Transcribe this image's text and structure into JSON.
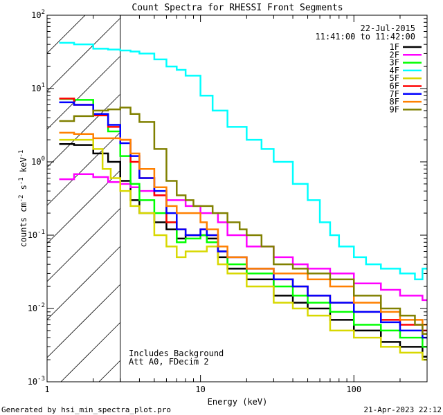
{
  "chart_data": {
    "type": "line",
    "title": "Count Spectra for RHESSI Front Segments",
    "xlabel": "Energy (keV)",
    "ylabel_parts": [
      "counts cm",
      "-2",
      " s",
      "-1",
      " keV",
      "-1"
    ],
    "xscale": "log",
    "yscale": "log",
    "xlim": [
      1,
      300
    ],
    "ylim": [
      0.001,
      100
    ],
    "x_major_ticks": [
      {
        "value": 1,
        "label": "1"
      },
      {
        "value": 10,
        "label": "10"
      },
      {
        "value": 100,
        "label": "100"
      }
    ],
    "y_major_ticks": [
      {
        "value": 0.001,
        "base": "10",
        "exp": "-3"
      },
      {
        "value": 0.01,
        "base": "10",
        "exp": "-2"
      },
      {
        "value": 0.1,
        "base": "10",
        "exp": "-1"
      },
      {
        "value": 1,
        "base": "10",
        "exp": "0"
      },
      {
        "value": 10,
        "base": "10",
        "exp": "1"
      },
      {
        "value": 100,
        "base": "10",
        "exp": "2"
      }
    ],
    "date": "22-Jul-2015",
    "time_range": "11:41:00 to 11:42:00",
    "shaded_region": {
      "xmin": 1,
      "xmax": 3
    },
    "vertical_line_x": 3,
    "annotations": [
      "Includes Background",
      "Att A0, FDecim 2"
    ],
    "series": [
      {
        "name": "1F",
        "color": "#000000",
        "points": [
          [
            1.2,
            1.75
          ],
          [
            1.5,
            1.7
          ],
          [
            2,
            1.3
          ],
          [
            2.5,
            1.0
          ],
          [
            3,
            0.55
          ],
          [
            3.5,
            0.3
          ],
          [
            4,
            0.2
          ],
          [
            5,
            0.15
          ],
          [
            6,
            0.12
          ],
          [
            7,
            0.09
          ],
          [
            8,
            0.1
          ],
          [
            9,
            0.1
          ],
          [
            10,
            0.1
          ],
          [
            11,
            0.09
          ],
          [
            13,
            0.05
          ],
          [
            15,
            0.035
          ],
          [
            20,
            0.025
          ],
          [
            30,
            0.015
          ],
          [
            40,
            0.012
          ],
          [
            50,
            0.01
          ],
          [
            70,
            0.007
          ],
          [
            100,
            0.005
          ],
          [
            150,
            0.0035
          ],
          [
            200,
            0.003
          ],
          [
            280,
            0.0022
          ]
        ]
      },
      {
        "name": "2F",
        "color": "#ff00ff",
        "points": [
          [
            1.2,
            0.58
          ],
          [
            1.5,
            0.68
          ],
          [
            2,
            0.62
          ],
          [
            2.5,
            0.53
          ],
          [
            3,
            0.5
          ],
          [
            3.5,
            0.45
          ],
          [
            4,
            0.4
          ],
          [
            5,
            0.35
          ],
          [
            6,
            0.3
          ],
          [
            8,
            0.25
          ],
          [
            10,
            0.2
          ],
          [
            13,
            0.15
          ],
          [
            15,
            0.1
          ],
          [
            20,
            0.07
          ],
          [
            30,
            0.05
          ],
          [
            40,
            0.04
          ],
          [
            50,
            0.035
          ],
          [
            70,
            0.03
          ],
          [
            100,
            0.022
          ],
          [
            150,
            0.018
          ],
          [
            200,
            0.015
          ],
          [
            280,
            0.013
          ]
        ]
      },
      {
        "name": "3F",
        "color": "#00ff00",
        "points": [
          [
            1.2,
            7.2
          ],
          [
            1.5,
            7.0
          ],
          [
            2,
            4.5
          ],
          [
            2.5,
            2.6
          ],
          [
            3,
            1.2
          ],
          [
            3.5,
            0.5
          ],
          [
            4,
            0.3
          ],
          [
            5,
            0.2
          ],
          [
            6,
            0.15
          ],
          [
            7,
            0.08
          ],
          [
            8,
            0.09
          ],
          [
            10,
            0.1
          ],
          [
            11,
            0.08
          ],
          [
            13,
            0.06
          ],
          [
            15,
            0.04
          ],
          [
            20,
            0.03
          ],
          [
            30,
            0.02
          ],
          [
            40,
            0.015
          ],
          [
            50,
            0.012
          ],
          [
            70,
            0.009
          ],
          [
            100,
            0.006
          ],
          [
            150,
            0.005
          ],
          [
            200,
            0.004
          ],
          [
            280,
            0.003
          ]
        ]
      },
      {
        "name": "4F",
        "color": "#00ffff",
        "points": [
          [
            1.2,
            42
          ],
          [
            1.5,
            40
          ],
          [
            2,
            35
          ],
          [
            2.5,
            34
          ],
          [
            3,
            33
          ],
          [
            3.5,
            32
          ],
          [
            4,
            30
          ],
          [
            5,
            25
          ],
          [
            6,
            20
          ],
          [
            7,
            18
          ],
          [
            8,
            15
          ],
          [
            10,
            8
          ],
          [
            12,
            5
          ],
          [
            15,
            3
          ],
          [
            20,
            2
          ],
          [
            25,
            1.5
          ],
          [
            30,
            1.0
          ],
          [
            40,
            0.5
          ],
          [
            50,
            0.3
          ],
          [
            60,
            0.15
          ],
          [
            70,
            0.1
          ],
          [
            80,
            0.07
          ],
          [
            100,
            0.05
          ],
          [
            120,
            0.04
          ],
          [
            150,
            0.035
          ],
          [
            200,
            0.03
          ],
          [
            250,
            0.025
          ],
          [
            280,
            0.035
          ]
        ]
      },
      {
        "name": "5F",
        "color": "#d8d800",
        "points": [
          [
            1.2,
            2.0
          ],
          [
            1.5,
            2.0
          ],
          [
            2,
            1.5
          ],
          [
            2.3,
            0.8
          ],
          [
            2.6,
            0.6
          ],
          [
            3,
            0.4
          ],
          [
            3.5,
            0.25
          ],
          [
            4,
            0.2
          ],
          [
            5,
            0.1
          ],
          [
            6,
            0.07
          ],
          [
            7,
            0.05
          ],
          [
            8,
            0.06
          ],
          [
            10,
            0.06
          ],
          [
            11,
            0.07
          ],
          [
            13,
            0.04
          ],
          [
            15,
            0.03
          ],
          [
            20,
            0.02
          ],
          [
            30,
            0.012
          ],
          [
            40,
            0.01
          ],
          [
            50,
            0.008
          ],
          [
            70,
            0.005
          ],
          [
            100,
            0.004
          ],
          [
            150,
            0.003
          ],
          [
            200,
            0.0025
          ],
          [
            280,
            0.002
          ]
        ]
      },
      {
        "name": "6F",
        "color": "#ff0000",
        "points": [
          [
            1.2,
            7.3
          ],
          [
            1.5,
            6.0
          ],
          [
            2,
            4.3
          ],
          [
            2.5,
            3.0
          ],
          [
            3,
            2.0
          ],
          [
            3.5,
            1.0
          ],
          [
            4,
            0.6
          ],
          [
            5,
            0.35
          ],
          [
            6,
            0.15
          ],
          [
            7,
            0.12
          ],
          [
            8,
            0.1
          ],
          [
            10,
            0.12
          ],
          [
            11,
            0.1
          ],
          [
            13,
            0.06
          ],
          [
            15,
            0.05
          ],
          [
            20,
            0.035
          ],
          [
            30,
            0.025
          ],
          [
            40,
            0.02
          ],
          [
            50,
            0.015
          ],
          [
            70,
            0.012
          ],
          [
            100,
            0.009
          ],
          [
            150,
            0.007
          ],
          [
            200,
            0.006
          ],
          [
            280,
            0.005
          ]
        ]
      },
      {
        "name": "7F",
        "color": "#0000ff",
        "points": [
          [
            1.2,
            6.5
          ],
          [
            1.5,
            6.0
          ],
          [
            2,
            4.5
          ],
          [
            2.5,
            3.2
          ],
          [
            3,
            1.8
          ],
          [
            3.5,
            1.2
          ],
          [
            4,
            0.6
          ],
          [
            5,
            0.4
          ],
          [
            6,
            0.2
          ],
          [
            7,
            0.12
          ],
          [
            8,
            0.1
          ],
          [
            10,
            0.12
          ],
          [
            11,
            0.1
          ],
          [
            13,
            0.06
          ],
          [
            15,
            0.05
          ],
          [
            20,
            0.035
          ],
          [
            30,
            0.025
          ],
          [
            40,
            0.02
          ],
          [
            50,
            0.015
          ],
          [
            70,
            0.012
          ],
          [
            100,
            0.009
          ],
          [
            150,
            0.0065
          ],
          [
            200,
            0.005
          ],
          [
            280,
            0.004
          ]
        ]
      },
      {
        "name": "8F",
        "color": "#ff8000",
        "points": [
          [
            1.2,
            2.5
          ],
          [
            1.5,
            2.4
          ],
          [
            2,
            2.1
          ],
          [
            2.5,
            2.1
          ],
          [
            3,
            2.0
          ],
          [
            3.5,
            1.3
          ],
          [
            4,
            0.8
          ],
          [
            5,
            0.45
          ],
          [
            6,
            0.25
          ],
          [
            7,
            0.2
          ],
          [
            8,
            0.2
          ],
          [
            10,
            0.15
          ],
          [
            11,
            0.12
          ],
          [
            13,
            0.07
          ],
          [
            15,
            0.05
          ],
          [
            20,
            0.035
          ],
          [
            30,
            0.03
          ],
          [
            40,
            0.03
          ],
          [
            50,
            0.025
          ],
          [
            70,
            0.02
          ],
          [
            100,
            0.012
          ],
          [
            150,
            0.009
          ],
          [
            200,
            0.007
          ],
          [
            280,
            0.006
          ]
        ]
      },
      {
        "name": "9F",
        "color": "#808000",
        "points": [
          [
            1.2,
            3.6
          ],
          [
            1.5,
            4.2
          ],
          [
            2,
            5.0
          ],
          [
            2.5,
            5.2
          ],
          [
            3,
            5.5
          ],
          [
            3.5,
            4.5
          ],
          [
            4,
            3.5
          ],
          [
            5,
            1.5
          ],
          [
            6,
            0.55
          ],
          [
            7,
            0.35
          ],
          [
            8,
            0.3
          ],
          [
            9,
            0.25
          ],
          [
            10,
            0.25
          ],
          [
            12,
            0.2
          ],
          [
            15,
            0.15
          ],
          [
            18,
            0.12
          ],
          [
            20,
            0.1
          ],
          [
            25,
            0.07
          ],
          [
            30,
            0.04
          ],
          [
            40,
            0.035
          ],
          [
            50,
            0.03
          ],
          [
            70,
            0.025
          ],
          [
            100,
            0.015
          ],
          [
            150,
            0.01
          ],
          [
            200,
            0.008
          ],
          [
            250,
            0.006
          ],
          [
            280,
            0.0045
          ]
        ]
      }
    ]
  },
  "footer": {
    "generated_by": "Generated by hsi_min_spectra_plot.pro",
    "timestamp": "21-Apr-2023 22:12"
  }
}
